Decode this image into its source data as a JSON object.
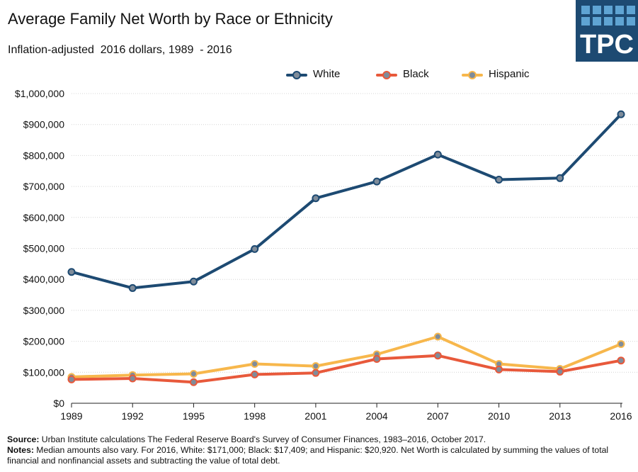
{
  "title": "Average Family Net Worth by Race or Ethnicity",
  "subtitle": "Inflation-adjusted  2016 dollars, 1989  - 2016",
  "logo": {
    "text": "TPC"
  },
  "legend": [
    "White",
    "Black",
    "Hispanic"
  ],
  "colors": {
    "White": "#1d4a72",
    "Black": "#e8593b",
    "Hispanic": "#f7b74c",
    "marker": "#7f8c9a"
  },
  "chart_data": {
    "type": "line",
    "title": "Average Family Net Worth by Race or Ethnicity",
    "subtitle": "Inflation-adjusted  2016 dollars, 1989  - 2016",
    "x": [
      1989,
      1992,
      1995,
      1998,
      2001,
      2004,
      2007,
      2010,
      2013,
      2016
    ],
    "x_tick_labels": [
      "1989",
      "1992",
      "1995",
      "1998",
      "2001",
      "2004",
      "2007",
      "2010",
      "2013",
      "2016"
    ],
    "y_tick_labels": [
      "$0",
      "$100,000",
      "$200,000",
      "$300,000",
      "$400,000",
      "$500,000",
      "$600,000",
      "$700,000",
      "$800,000",
      "$900,000",
      "$1,000,000"
    ],
    "ylim": [
      0,
      1000000
    ],
    "grid": true,
    "legend_position": "top-center",
    "series": [
      {
        "name": "White",
        "values": [
          424000,
          372000,
          393000,
          498000,
          662000,
          716000,
          803000,
          722000,
          727000,
          933000
        ]
      },
      {
        "name": "Black",
        "values": [
          77000,
          80000,
          68000,
          93000,
          98000,
          143000,
          154000,
          109000,
          102000,
          138000
        ]
      },
      {
        "name": "Hispanic",
        "values": [
          85000,
          91000,
          95000,
          127000,
          120000,
          158000,
          215000,
          127000,
          111000,
          191000
        ]
      }
    ]
  },
  "footer": {
    "source_label": "Source:",
    "source_text": " Urban Institute calculations  The Federal Reserve Board's Survey of Consumer Finances, 1983–2016,  October 2017.",
    "notes_label": "Notes:",
    "notes_text": " Median amounts also vary. For 2016, White: $171,000;  Black: $17,409;  and Hispanic: $20,920.  Net Worth is calculated  by summing the values of total financial and nonfinancial  assets and subtracting the value of total debt."
  }
}
